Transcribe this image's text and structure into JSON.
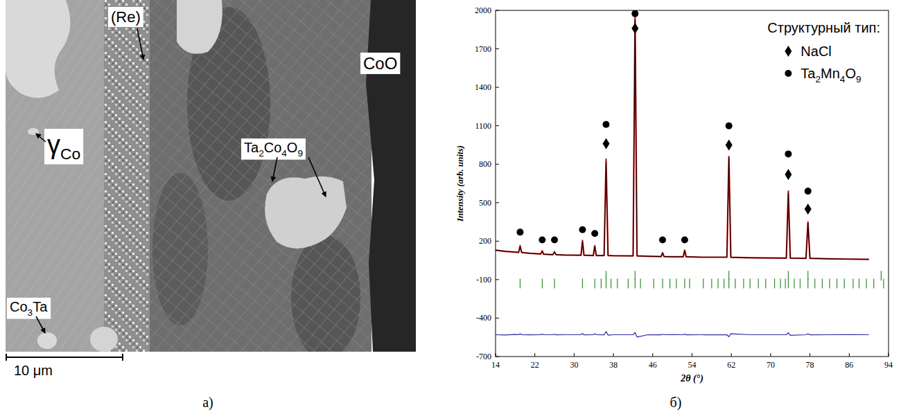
{
  "micrograph": {
    "panel_label": "а)",
    "scale_bar": "10 μm",
    "labels": [
      {
        "text": "(Re)"
      },
      {
        "text": "γ",
        "sub": "Co"
      },
      {
        "text": "CoO"
      },
      {
        "text": "Ta2Co4O9"
      },
      {
        "text": "Co3Ta"
      }
    ]
  },
  "chart_data": {
    "type": "line",
    "panel_label": "б)",
    "x_label": "2θ (°)",
    "y_label": "Intensity (arb. units)",
    "x": [
      14,
      16,
      18,
      18.7,
      19.0,
      19.3,
      21,
      23.2,
      23.5,
      23.8,
      25.7,
      26.0,
      26.3,
      28,
      31.4,
      31.7,
      32.0,
      33.9,
      34.2,
      34.5,
      36.1,
      36.5,
      36.9,
      38,
      42.0,
      42.4,
      42.8,
      45,
      47.7,
      48.0,
      48.3,
      50,
      52.2,
      52.5,
      52.8,
      56,
      61.1,
      61.5,
      61.9,
      66,
      73.2,
      73.6,
      74.0,
      77.2,
      77.6,
      78.0,
      82,
      86,
      90
    ],
    "series": [
      {
        "color": "#cc1111",
        "line_style": "solid",
        "values": [
          130,
          120,
          115,
          112,
          165,
          112,
          105,
          100,
          125,
          98,
          95,
          118,
          95,
          92,
          90,
          205,
          90,
          88,
          165,
          88,
          88,
          840,
          88,
          86,
          85,
          1950,
          85,
          82,
          80,
          110,
          80,
          78,
          78,
          130,
          78,
          75,
          75,
          860,
          74,
          70,
          68,
          590,
          68,
          66,
          350,
          66,
          62,
          60,
          58
        ]
      },
      {
        "color": "#000000",
        "line_style": "solid",
        "values": [
          130,
          120,
          115,
          112,
          158,
          112,
          105,
          100,
          120,
          98,
          95,
          114,
          95,
          92,
          90,
          195,
          90,
          88,
          158,
          88,
          88,
          815,
          88,
          86,
          85,
          1930,
          85,
          82,
          80,
          106,
          80,
          78,
          78,
          125,
          78,
          75,
          75,
          850,
          74,
          70,
          68,
          575,
          68,
          66,
          340,
          66,
          62,
          60,
          58
        ]
      },
      {
        "color": "#2a2aa0",
        "line_style": "solid",
        "values": [
          -530,
          -532,
          -528,
          -530,
          -522,
          -530,
          -531,
          -529,
          -525,
          -530,
          -529,
          -526,
          -531,
          -530,
          -529,
          -520,
          -531,
          -530,
          -522,
          -530,
          -531,
          -505,
          -533,
          -530,
          -530,
          -512,
          -548,
          -530,
          -531,
          -526,
          -530,
          -529,
          -530,
          -524,
          -531,
          -530,
          -531,
          -545,
          -522,
          -530,
          -530,
          -515,
          -535,
          -530,
          -522,
          -531,
          -530,
          -529,
          -530
        ]
      }
    ],
    "xlim": [
      14,
      94
    ],
    "xticks": [
      14,
      22,
      30,
      38,
      46,
      54,
      62,
      70,
      78,
      86,
      94
    ],
    "ylim": [
      -700,
      2000
    ],
    "yticks": [
      -700,
      -400,
      -100,
      200,
      500,
      800,
      1100,
      1400,
      1700,
      2000
    ],
    "grid": false,
    "legend": "top-right",
    "legend_title": "Структурный тип:",
    "phase_markers": [
      {
        "name": "NaCl",
        "marker": "diamond",
        "color": "#000000",
        "x": [
          36.5,
          42.4,
          61.5,
          73.6,
          77.6
        ],
        "y": [
          960,
          1860,
          950,
          720,
          450
        ]
      },
      {
        "name": "Ta2Mn4O9",
        "marker": "circle",
        "color": "#000000",
        "x": [
          19.0,
          23.5,
          26.0,
          31.7,
          34.2,
          36.5,
          42.4,
          48.0,
          52.5,
          61.5,
          73.6,
          77.6
        ],
        "y": [
          270,
          210,
          210,
          290,
          260,
          1110,
          1975,
          210,
          210,
          1100,
          880,
          590
        ]
      }
    ],
    "reflections": [
      {
        "color": "#2e8b2e",
        "level": -70,
        "positions": [
          36.5,
          42.4,
          61.5,
          73.6,
          77.6,
          92.5
        ]
      },
      {
        "color": "#2e8b2e",
        "level": -130,
        "positions": [
          19.0,
          23.5,
          26.0,
          31.7,
          34.2,
          35.5,
          36.5,
          37.5,
          38.8,
          41.0,
          42.4,
          43.5,
          46.2,
          48.0,
          49.5,
          50.8,
          52.5,
          53.5,
          56.3,
          58.0,
          59.3,
          60.5,
          61.5,
          62.8,
          64.5,
          65.8,
          67.5,
          69.0,
          70.8,
          72.0,
          73.0,
          73.6,
          74.8,
          76.0,
          77.6,
          79.0,
          80.5,
          82.0,
          83.5,
          85.0,
          86.8,
          88.0,
          89.5,
          91.0,
          93.0
        ]
      }
    ]
  }
}
